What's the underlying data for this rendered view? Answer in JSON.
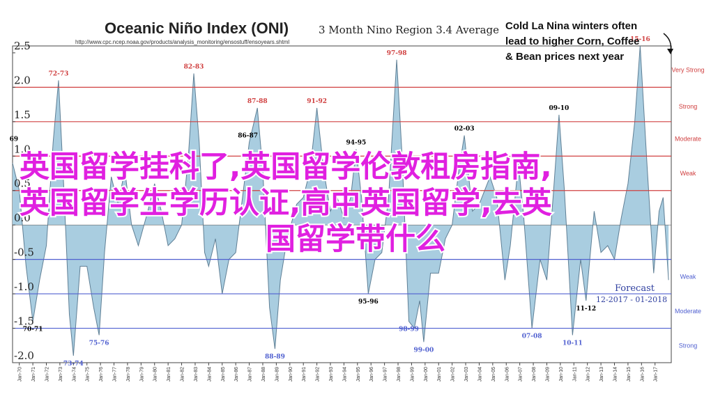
{
  "chart_data": {
    "type": "area",
    "title": "Oceanic Niño Index (ONI)",
    "subtitle": "3 Month Nino Region 3.4 Average",
    "source": "http://www.cpc.ncep.noaa.gov/products/analysis_monitoring/ensostuff/ensoyears.shtml",
    "callout": [
      "Cold La Nina winters often",
      "lead to higher Corn, Coffee",
      "& Bean prices next year"
    ],
    "forecast": [
      "Forecast",
      "12-2017 - 01-2018"
    ],
    "overlay": [
      "英国留学挂科了,英国留学伦敦租房指南,",
      "英国留学生学历认证,高中英国留学,去英",
      "国留学带什么"
    ],
    "color": "#a9cde0",
    "line_color": "#5f7f95",
    "x": [
      1969.5,
      1970.0,
      1970.5,
      1971.0,
      1971.5,
      1972.0,
      1972.5,
      1972.9,
      1973.3,
      1973.7,
      1974.0,
      1974.5,
      1975.0,
      1975.5,
      1975.9,
      1976.3,
      1976.8,
      1977.3,
      1977.8,
      1978.3,
      1978.8,
      1979.5,
      1980.0,
      1980.5,
      1981.0,
      1981.5,
      1982.0,
      1982.5,
      1982.9,
      1983.3,
      1983.7,
      1984.0,
      1984.5,
      1985.0,
      1985.5,
      1986.0,
      1986.5,
      1987.0,
      1987.6,
      1988.0,
      1988.5,
      1988.9,
      1989.3,
      1989.8,
      1990.5,
      1991.0,
      1991.5,
      1992.0,
      1992.5,
      1993.0,
      1993.5,
      1994.0,
      1994.5,
      1994.9,
      1995.3,
      1995.8,
      1996.3,
      1996.8,
      1997.3,
      1997.9,
      1998.3,
      1998.8,
      1999.2,
      1999.6,
      1999.9,
      2000.4,
      2001.0,
      2001.5,
      2002.0,
      2002.5,
      2002.9,
      2003.5,
      2004.0,
      2004.8,
      2005.3,
      2005.9,
      2006.3,
      2006.9,
      2007.3,
      2007.9,
      2008.5,
      2009.0,
      2009.5,
      2009.9,
      2010.3,
      2010.9,
      2011.5,
      2011.9,
      2012.5,
      2013.0,
      2013.5,
      2014.0,
      2014.5,
      2015.0,
      2015.5,
      2015.9,
      2016.4,
      2016.9,
      2017.3,
      2017.6,
      2018.0
    ],
    "values": [
      0.9,
      0.5,
      -0.6,
      -1.4,
      -0.8,
      -0.3,
      1.2,
      2.1,
      0.5,
      -1.3,
      -1.9,
      -0.6,
      -0.6,
      -1.2,
      -1.6,
      -0.4,
      0.7,
      0.3,
      0.8,
      0.0,
      -0.3,
      0.2,
      0.6,
      0.2,
      -0.3,
      -0.2,
      0.0,
      1.0,
      2.2,
      1.2,
      -0.4,
      -0.6,
      -0.2,
      -1.0,
      -0.5,
      -0.4,
      0.4,
      1.2,
      1.7,
      0.8,
      -1.2,
      -1.8,
      -0.8,
      -0.2,
      0.3,
      0.4,
      0.8,
      1.7,
      0.8,
      0.2,
      0.4,
      0.1,
      0.4,
      1.1,
      0.4,
      -1.0,
      -0.5,
      -0.4,
      0.4,
      2.4,
      1.0,
      -1.4,
      -1.5,
      -1.1,
      -1.7,
      -0.7,
      -0.7,
      -0.2,
      0.0,
      0.8,
      1.3,
      0.2,
      0.3,
      0.7,
      0.4,
      -0.8,
      -0.3,
      0.9,
      0.1,
      -1.5,
      -0.5,
      -0.8,
      0.5,
      1.6,
      0.5,
      -1.6,
      -0.5,
      -1.1,
      0.2,
      -0.4,
      -0.3,
      -0.5,
      0.1,
      0.6,
      1.5,
      2.6,
      0.9,
      -0.7,
      0.2,
      0.4,
      -0.8
    ],
    "xlim": [
      1969.5,
      2018.2
    ],
    "ylim": [
      -2.0,
      2.6
    ],
    "yticks": [
      {
        "value": 2.5,
        "label": "2.5"
      },
      {
        "value": 2.0,
        "label": "2.0"
      },
      {
        "value": 1.5,
        "label": "1.5"
      },
      {
        "value": 1.0,
        "label": "1.0"
      },
      {
        "value": 0.5,
        "label": "0.5"
      },
      {
        "value": 0,
        "label": "0.0"
      },
      {
        "value": -0.5,
        "label": "-0.5"
      },
      {
        "value": -1.0,
        "label": "-1.0"
      },
      {
        "value": -1.5,
        "label": "-1.5"
      },
      {
        "value": -2.0,
        "label": "-2.0"
      }
    ],
    "xticks": [
      {
        "value": 1970,
        "label": "Jan-70"
      },
      {
        "value": 1971,
        "label": "Jan-71"
      },
      {
        "value": 1972,
        "label": "Jan-72"
      },
      {
        "value": 1973,
        "label": "Jan-73"
      },
      {
        "value": 1974,
        "label": "Jan-74"
      },
      {
        "value": 1975,
        "label": "Jan-75"
      },
      {
        "value": 1976,
        "label": "Jan-76"
      },
      {
        "value": 1977,
        "label": "Jan-77"
      },
      {
        "value": 1978,
        "label": "Jan-78"
      },
      {
        "value": 1979,
        "label": "Jan-79"
      },
      {
        "value": 1980,
        "label": "Jan-80"
      },
      {
        "value": 1981,
        "label": "Jan-81"
      },
      {
        "value": 1982,
        "label": "Jan-82"
      },
      {
        "value": 1983,
        "label": "Jan-83"
      },
      {
        "value": 1984,
        "label": "Jan-84"
      },
      {
        "value": 1985,
        "label": "Jan-85"
      },
      {
        "value": 1986,
        "label": "Jan-86"
      },
      {
        "value": 1987,
        "label": "Jan-87"
      },
      {
        "value": 1988,
        "label": "Jan-88"
      },
      {
        "value": 1989,
        "label": "Jan-89"
      },
      {
        "value": 1990,
        "label": "Jan-90"
      },
      {
        "value": 1991,
        "label": "Jan-91"
      },
      {
        "value": 1992,
        "label": "Jan-92"
      },
      {
        "value": 1993,
        "label": "Jan-93"
      },
      {
        "value": 1994,
        "label": "Jan-94"
      },
      {
        "value": 1995,
        "label": "Jan-95"
      },
      {
        "value": 1996,
        "label": "Jan-96"
      },
      {
        "value": 1997,
        "label": "Jan-97"
      },
      {
        "value": 1998,
        "label": "Jan-98"
      },
      {
        "value": 1999,
        "label": "Jan-99"
      },
      {
        "value": 2000,
        "label": "Jan-00"
      },
      {
        "value": 2001,
        "label": "Jan-01"
      },
      {
        "value": 2002,
        "label": "Jan-02"
      },
      {
        "value": 2003,
        "label": "Jan-03"
      },
      {
        "value": 2004,
        "label": "Jan-04"
      },
      {
        "value": 2005,
        "label": "Jan-05"
      },
      {
        "value": 2006,
        "label": "Jan-06"
      },
      {
        "value": 2007,
        "label": "Jan-07"
      },
      {
        "value": 2008,
        "label": "Jan-08"
      },
      {
        "value": 2009,
        "label": "Jan-09"
      },
      {
        "value": 2010,
        "label": "Jan-10"
      },
      {
        "value": 2011,
        "label": "Jan-11"
      },
      {
        "value": 2012,
        "label": "Jan-12"
      },
      {
        "value": 2013,
        "label": "Jan-13"
      },
      {
        "value": 2014,
        "label": "Jan-14"
      },
      {
        "value": 2015,
        "label": "Jan-15"
      },
      {
        "value": 2016,
        "label": "Jan-16"
      },
      {
        "value": 2017,
        "label": "Jan-17"
      }
    ],
    "thresholds": [
      {
        "value": 2.0,
        "color": "#d04040"
      },
      {
        "value": 1.5,
        "color": "#d04040"
      },
      {
        "value": 1.0,
        "color": "#d04040"
      },
      {
        "value": 0.5,
        "color": "#d04040"
      },
      {
        "value": -0.5,
        "color": "#5060d0"
      },
      {
        "value": -1.0,
        "color": "#5060d0"
      },
      {
        "value": -1.5,
        "color": "#5060d0"
      }
    ],
    "bands": [
      {
        "label": "Very Strong",
        "value": 2.25,
        "color": "#d04040"
      },
      {
        "label": "Strong",
        "value": 1.72,
        "color": "#d04040"
      },
      {
        "label": "Moderate",
        "value": 1.25,
        "color": "#d04040"
      },
      {
        "label": "Weak",
        "value": 0.75,
        "color": "#d04040"
      },
      {
        "label": "Weak",
        "value": -0.75,
        "color": "#5060d0"
      },
      {
        "label": "Moderate",
        "value": -1.25,
        "color": "#5060d0"
      },
      {
        "label": "Strong",
        "value": -1.75,
        "color": "#5060d0"
      }
    ],
    "events": [
      {
        "label": "69",
        "x": 1969.6,
        "value": 1.15,
        "color": "#000000"
      },
      {
        "label": "72-73",
        "x": 1972.9,
        "value": 2.1,
        "color": "#d04040"
      },
      {
        "label": "82-83",
        "x": 1982.9,
        "value": 2.2,
        "color": "#d04040"
      },
      {
        "label": "87-88",
        "x": 1987.6,
        "value": 1.7,
        "color": "#d04040"
      },
      {
        "label": "86-87",
        "x": 1986.9,
        "value": 1.2,
        "color": "#000000"
      },
      {
        "label": "91-92",
        "x": 1992.0,
        "value": 1.7,
        "color": "#d04040"
      },
      {
        "label": "94-95",
        "x": 1994.9,
        "value": 1.1,
        "color": "#000000"
      },
      {
        "label": "97-98",
        "x": 1997.9,
        "value": 2.4,
        "color": "#d04040"
      },
      {
        "label": "02-03",
        "x": 2002.9,
        "value": 1.3,
        "color": "#000000"
      },
      {
        "label": "09-10",
        "x": 2009.9,
        "value": 1.6,
        "color": "#000000"
      },
      {
        "label": "15-16",
        "x": 2015.9,
        "value": 2.6,
        "color": "#d04040"
      },
      {
        "label": "70-71",
        "x": 1971.0,
        "value": -1.4,
        "color": "#000000"
      },
      {
        "label": "73-74",
        "x": 1974.0,
        "value": -1.9,
        "color": "#5060d0"
      },
      {
        "label": "75-76",
        "x": 1975.9,
        "value": -1.6,
        "color": "#5060d0"
      },
      {
        "label": "88-89",
        "x": 1988.9,
        "value": -1.8,
        "color": "#5060d0"
      },
      {
        "label": "95-96",
        "x": 1995.8,
        "value": -1.0,
        "color": "#000000"
      },
      {
        "label": "98-99",
        "x": 1998.8,
        "value": -1.4,
        "color": "#5060d0"
      },
      {
        "label": "99-00",
        "x": 1999.9,
        "value": -1.7,
        "color": "#5060d0"
      },
      {
        "label": "07-08",
        "x": 2007.9,
        "value": -1.5,
        "color": "#5060d0"
      },
      {
        "label": "10-11",
        "x": 2010.9,
        "value": -1.6,
        "color": "#5060d0"
      },
      {
        "label": "11-12",
        "x": 2011.9,
        "value": -1.1,
        "color": "#000000"
      }
    ]
  }
}
